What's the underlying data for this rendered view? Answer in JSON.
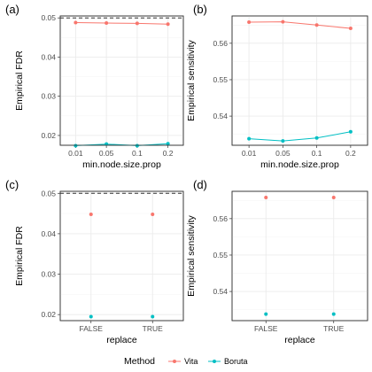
{
  "colors": {
    "vita": "#F8766D",
    "boruta": "#00BFC4"
  },
  "legend": {
    "title": "Method",
    "entries": [
      "Vita",
      "Boruta"
    ]
  },
  "chart_data": [
    {
      "tag": "(a)",
      "type": "line",
      "xlabel": "min.node.size.prop",
      "ylabel": "Empirical FDR",
      "categories": [
        "0.01",
        "0.05",
        "0.1",
        "0.2"
      ],
      "ylim": [
        0.0175,
        0.0505
      ],
      "yticks": [
        0.02,
        0.03,
        0.04,
        0.05
      ],
      "yticklabels": [
        "0.02",
        "0.03",
        "0.04",
        "0.05"
      ],
      "reference_line": 0.05,
      "series": [
        {
          "name": "Vita",
          "values": [
            0.0488,
            0.0487,
            0.0486,
            0.0484
          ]
        },
        {
          "name": "Boruta",
          "values": [
            0.0174,
            0.0178,
            0.0174,
            0.0179
          ]
        }
      ]
    },
    {
      "tag": "(b)",
      "type": "line",
      "xlabel": "min.node.size.prop",
      "ylabel": "Empirical sensitivity",
      "categories": [
        "0.01",
        "0.05",
        "0.1",
        "0.2"
      ],
      "ylim": [
        0.532,
        0.5675
      ],
      "yticks": [
        0.54,
        0.55,
        0.56
      ],
      "yticklabels": [
        "0.54",
        "0.55",
        "0.56"
      ],
      "series": [
        {
          "name": "Vita",
          "values": [
            0.5658,
            0.5659,
            0.565,
            0.5641
          ]
        },
        {
          "name": "Boruta",
          "values": [
            0.5338,
            0.5332,
            0.534,
            0.5357
          ]
        }
      ]
    },
    {
      "tag": "(c)",
      "type": "scatter",
      "xlabel": "replace",
      "ylabel": "Empirical FDR",
      "categories": [
        "FALSE",
        "TRUE"
      ],
      "ylim": [
        0.0185,
        0.0505
      ],
      "yticks": [
        0.02,
        0.03,
        0.04,
        0.05
      ],
      "yticklabels": [
        "0.02",
        "0.03",
        "0.04",
        "0.05"
      ],
      "reference_line": 0.05,
      "series": [
        {
          "name": "Vita",
          "values": [
            0.0448,
            0.0448
          ]
        },
        {
          "name": "Boruta",
          "values": [
            0.0195,
            0.0195
          ]
        }
      ]
    },
    {
      "tag": "(d)",
      "type": "scatter",
      "xlabel": "replace",
      "ylabel": "Empirical sensitivity",
      "categories": [
        "FALSE",
        "TRUE"
      ],
      "ylim": [
        0.532,
        0.5675
      ],
      "yticks": [
        0.54,
        0.55,
        0.56
      ],
      "yticklabels": [
        "0.54",
        "0.55",
        "0.56"
      ],
      "series": [
        {
          "name": "Vita",
          "values": [
            0.5658,
            0.5658
          ]
        },
        {
          "name": "Boruta",
          "values": [
            0.5338,
            0.5338
          ]
        }
      ]
    }
  ]
}
